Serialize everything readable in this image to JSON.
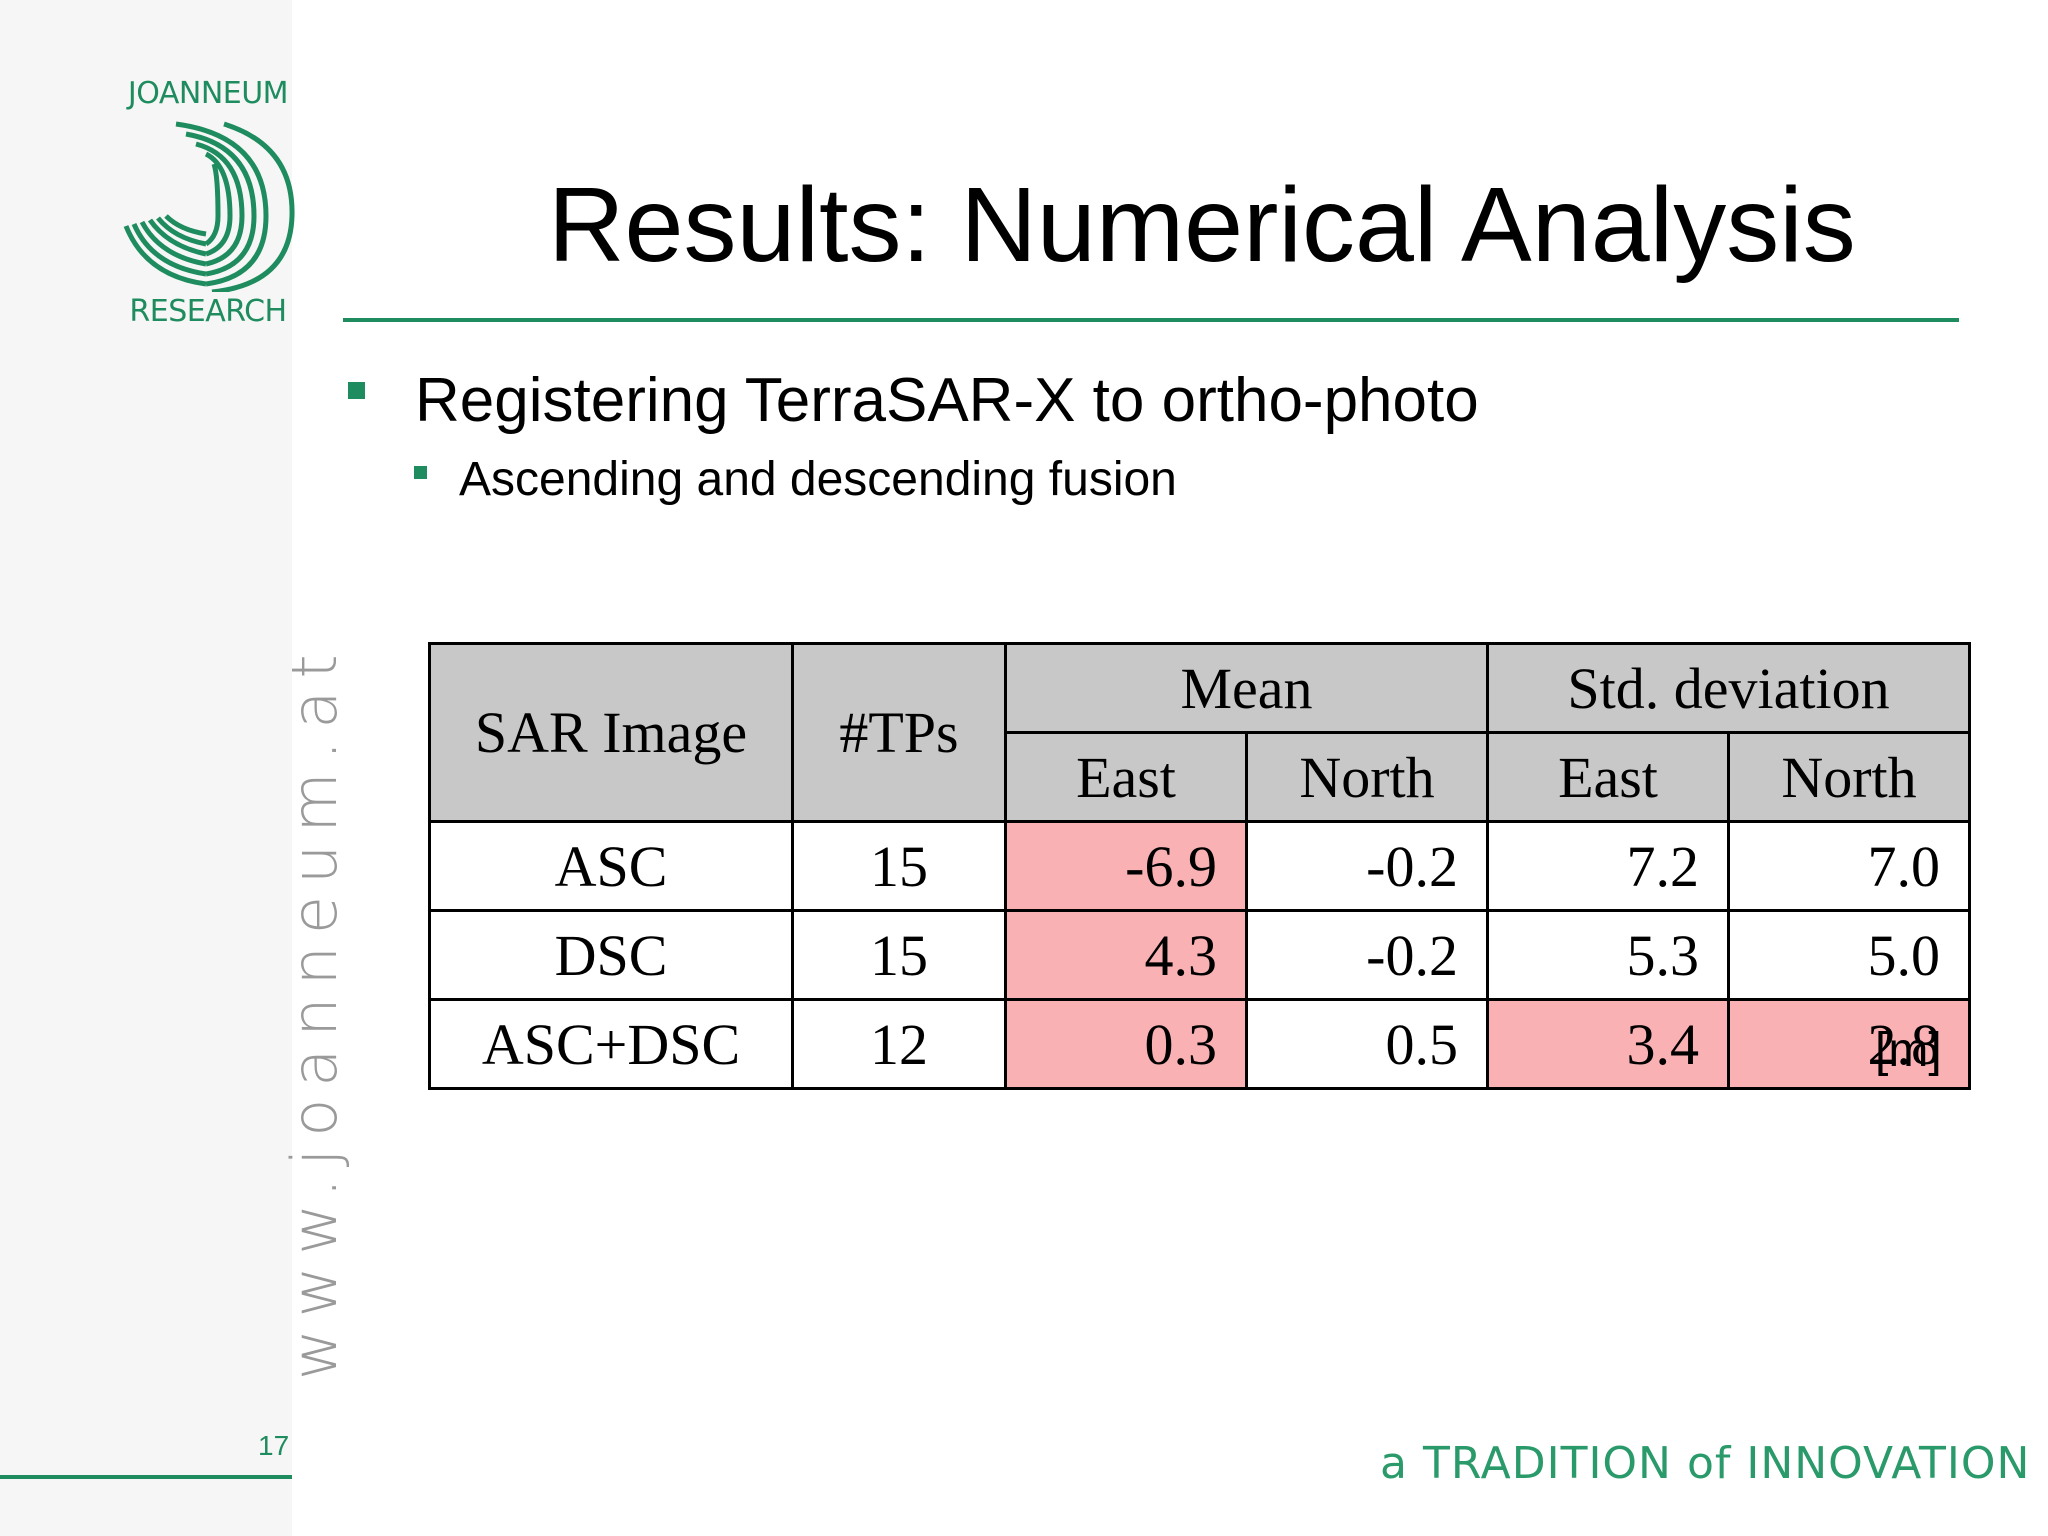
{
  "logo": {
    "top_text": "JOANNEUM",
    "bottom_text": "RESEARCH",
    "accent": "#1e8c5e"
  },
  "sidebar": {
    "url": "www.joanneum.at",
    "page_number": "17"
  },
  "footer": {
    "tagline": "a TRADITION of INNOVATION"
  },
  "title": "Results: Numerical Analysis",
  "bullets": {
    "level1": "Registering TerraSAR-X to ortho-photo",
    "level2": "Ascending and descending fusion"
  },
  "table": {
    "headers": {
      "sar_image": "SAR Image",
      "tps": "#TPs",
      "mean": "Mean",
      "std": "Std. deviation",
      "east": "East",
      "north": "North"
    },
    "rows": [
      {
        "image": "ASC",
        "tps": "15",
        "mean_east": "-6.9",
        "mean_north": "-0.2",
        "std_east": "7.2",
        "std_north": "7.0"
      },
      {
        "image": "DSC",
        "tps": "15",
        "mean_east": "4.3",
        "mean_north": "-0.2",
        "std_east": "5.3",
        "std_north": "5.0"
      },
      {
        "image": "ASC+DSC",
        "tps": "12",
        "mean_east": "0.3",
        "mean_north": "0.5",
        "std_east": "3.4",
        "std_north": "2.8"
      }
    ],
    "unit": "[m]",
    "highlight_color": "#f9b1b4"
  }
}
